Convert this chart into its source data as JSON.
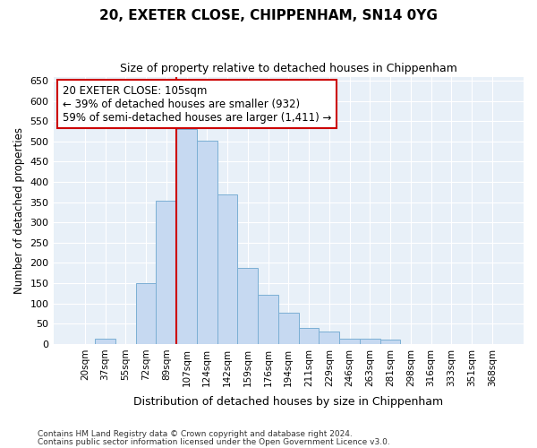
{
  "title1": "20, EXETER CLOSE, CHIPPENHAM, SN14 0YG",
  "title2": "Size of property relative to detached houses in Chippenham",
  "xlabel": "Distribution of detached houses by size in Chippenham",
  "ylabel": "Number of detached properties",
  "categories": [
    "20sqm",
    "37sqm",
    "55sqm",
    "72sqm",
    "89sqm",
    "107sqm",
    "124sqm",
    "142sqm",
    "159sqm",
    "176sqm",
    "194sqm",
    "211sqm",
    "229sqm",
    "246sqm",
    "263sqm",
    "281sqm",
    "298sqm",
    "316sqm",
    "333sqm",
    "351sqm",
    "368sqm"
  ],
  "values": [
    0,
    13,
    0,
    150,
    353,
    530,
    503,
    370,
    188,
    122,
    78,
    40,
    30,
    14,
    14,
    10,
    0,
    0,
    0,
    0,
    0
  ],
  "bar_color": "#c6d9f1",
  "bar_edge_color": "#7bafd4",
  "vline_color": "#cc0000",
  "vline_x": 5,
  "annotation_text": "20 EXETER CLOSE: 105sqm\n← 39% of detached houses are smaller (932)\n59% of semi-detached houses are larger (1,411) →",
  "annotation_box_color": "#ffffff",
  "annotation_box_edge": "#cc0000",
  "ylim": [
    0,
    660
  ],
  "yticks": [
    0,
    50,
    100,
    150,
    200,
    250,
    300,
    350,
    400,
    450,
    500,
    550,
    600,
    650
  ],
  "bg_color": "#e8f0f8",
  "grid_color": "#ffffff",
  "footer1": "Contains HM Land Registry data © Crown copyright and database right 2024.",
  "footer2": "Contains public sector information licensed under the Open Government Licence v3.0."
}
